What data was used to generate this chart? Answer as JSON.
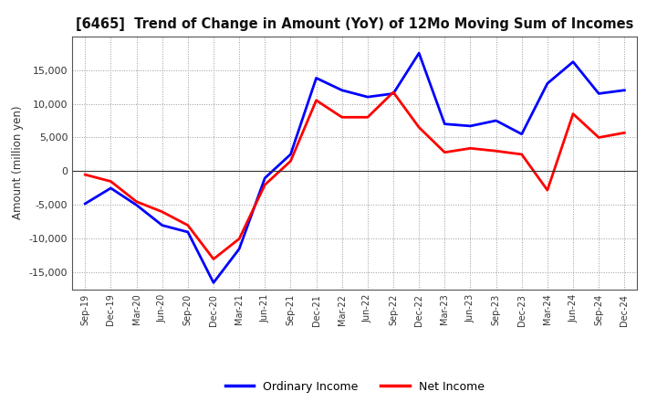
{
  "title": "[6465]  Trend of Change in Amount (YoY) of 12Mo Moving Sum of Incomes",
  "ylabel": "Amount (million yen)",
  "x_labels": [
    "Sep-19",
    "Dec-19",
    "Mar-20",
    "Jun-20",
    "Sep-20",
    "Dec-20",
    "Mar-21",
    "Jun-21",
    "Sep-21",
    "Dec-21",
    "Mar-22",
    "Jun-22",
    "Sep-22",
    "Dec-22",
    "Mar-23",
    "Jun-23",
    "Sep-23",
    "Dec-23",
    "Mar-24",
    "Jun-24",
    "Sep-24",
    "Dec-24"
  ],
  "ordinary_income": [
    -4800,
    -2500,
    -5000,
    -8000,
    -9000,
    -16500,
    -11500,
    -1000,
    2500,
    13800,
    12000,
    11000,
    11500,
    17500,
    7000,
    6700,
    7500,
    5500,
    13000,
    16200,
    11500,
    12000
  ],
  "net_income": [
    -500,
    -1500,
    -4500,
    -6000,
    -8000,
    -13000,
    -10000,
    -2000,
    1500,
    10500,
    8000,
    8000,
    11700,
    6500,
    2800,
    3400,
    3000,
    2500,
    -2800,
    8500,
    5000,
    5700
  ],
  "ordinary_color": "#0000FF",
  "net_color": "#FF0000",
  "ylim": [
    -17500,
    20000
  ],
  "yticks": [
    -15000,
    -10000,
    -5000,
    0,
    5000,
    10000,
    15000
  ],
  "background_color": "#FFFFFF",
  "grid_color": "#AAAAAA",
  "legend_labels": [
    "Ordinary Income",
    "Net Income"
  ]
}
